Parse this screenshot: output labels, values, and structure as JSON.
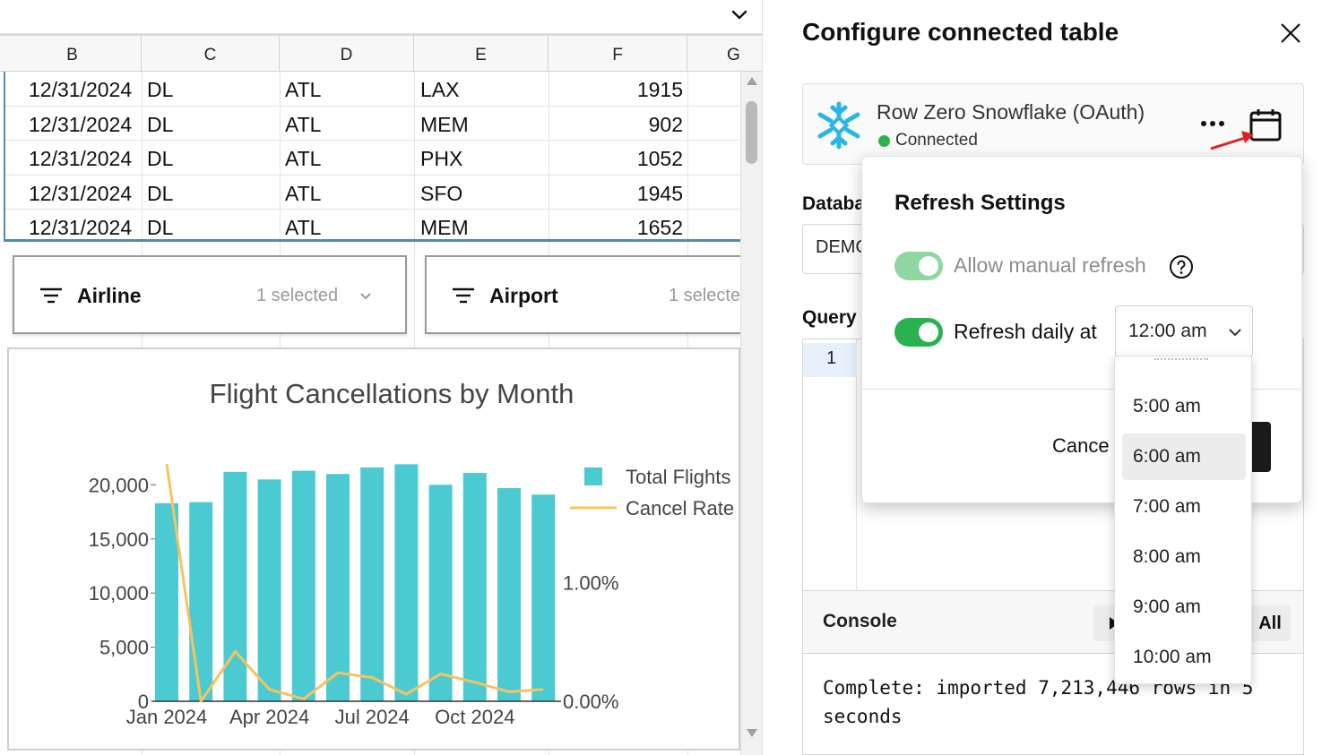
{
  "sheet": {
    "columns": [
      "B",
      "C",
      "D",
      "E",
      "F",
      "G"
    ],
    "rows": [
      [
        "12/31/2024",
        "DL",
        "ATL",
        "LAX",
        "1915"
      ],
      [
        "12/31/2024",
        "DL",
        "ATL",
        "MEM",
        "902"
      ],
      [
        "12/31/2024",
        "DL",
        "ATL",
        "PHX",
        "1052"
      ],
      [
        "12/31/2024",
        "DL",
        "ATL",
        "SFO",
        "1945"
      ],
      [
        "12/31/2024",
        "DL",
        "ATL",
        "MEM",
        "1652"
      ]
    ],
    "filters": [
      {
        "label": "Airline",
        "selected": "1 selected"
      },
      {
        "label": "Airport",
        "selected": "1 selecte"
      }
    ],
    "icons": {
      "top_chevron": "chevron-down-icon",
      "filter": "filter-lines-icon"
    }
  },
  "chart_data": {
    "type": "bar",
    "title": "Flight Cancellations by Month",
    "x_tick_labels": [
      "Jan 2024",
      "Apr 2024",
      "Jul 2024",
      "Oct 2024"
    ],
    "y_left_ticks": [
      "0",
      "5,000",
      "10,000",
      "15,000",
      "20,000"
    ],
    "y_left_range": [
      0,
      22000
    ],
    "y_right_ticks": [
      "0.00%",
      "1.00%"
    ],
    "y_right_range": [
      0,
      2.0
    ],
    "legend_placement": "right",
    "grid": false,
    "series": [
      {
        "name": "Total Flights",
        "type": "bar",
        "color": "#4ccad1",
        "values": [
          18300,
          18400,
          21200,
          20500,
          21300,
          21000,
          21600,
          21900,
          20000,
          21100,
          19700,
          19100
        ]
      },
      {
        "name": "Cancel Rate",
        "type": "line",
        "color": "#f7c35f",
        "values": [
          2.0,
          0.0,
          0.42,
          0.1,
          0.02,
          0.24,
          0.2,
          0.06,
          0.23,
          0.16,
          0.08,
          0.1
        ]
      }
    ]
  },
  "panel": {
    "title": "Configure connected table",
    "connection": {
      "name": "Row Zero Snowflake (OAuth)",
      "status": "Connected",
      "status_color": "#2fb24c",
      "icons": {
        "logo": "snowflake-icon",
        "more": "more-horizontal-icon",
        "calendar": "calendar-icon",
        "close": "close-icon"
      }
    },
    "database_label": "Databa",
    "database_value": "DEMO",
    "query_label": "Query",
    "editor_line": "1",
    "console": {
      "label": "Console",
      "all_label": "All",
      "output": "Complete: imported 7,213,446 rows in 5 seconds"
    }
  },
  "refresh": {
    "title": "Refresh Settings",
    "manual_label": "Allow manual refresh",
    "daily_label": "Refresh daily at",
    "time_value": "12:00 am",
    "cancel_label": "Cance",
    "time_options": [
      "5:00 am",
      "6:00 am",
      "7:00 am",
      "8:00 am",
      "9:00 am",
      "10:00 am"
    ],
    "selected_option": "6:00 am",
    "toggle_on_color": "#29b24f",
    "toggle_disabled_color": "#8fd6a2"
  }
}
